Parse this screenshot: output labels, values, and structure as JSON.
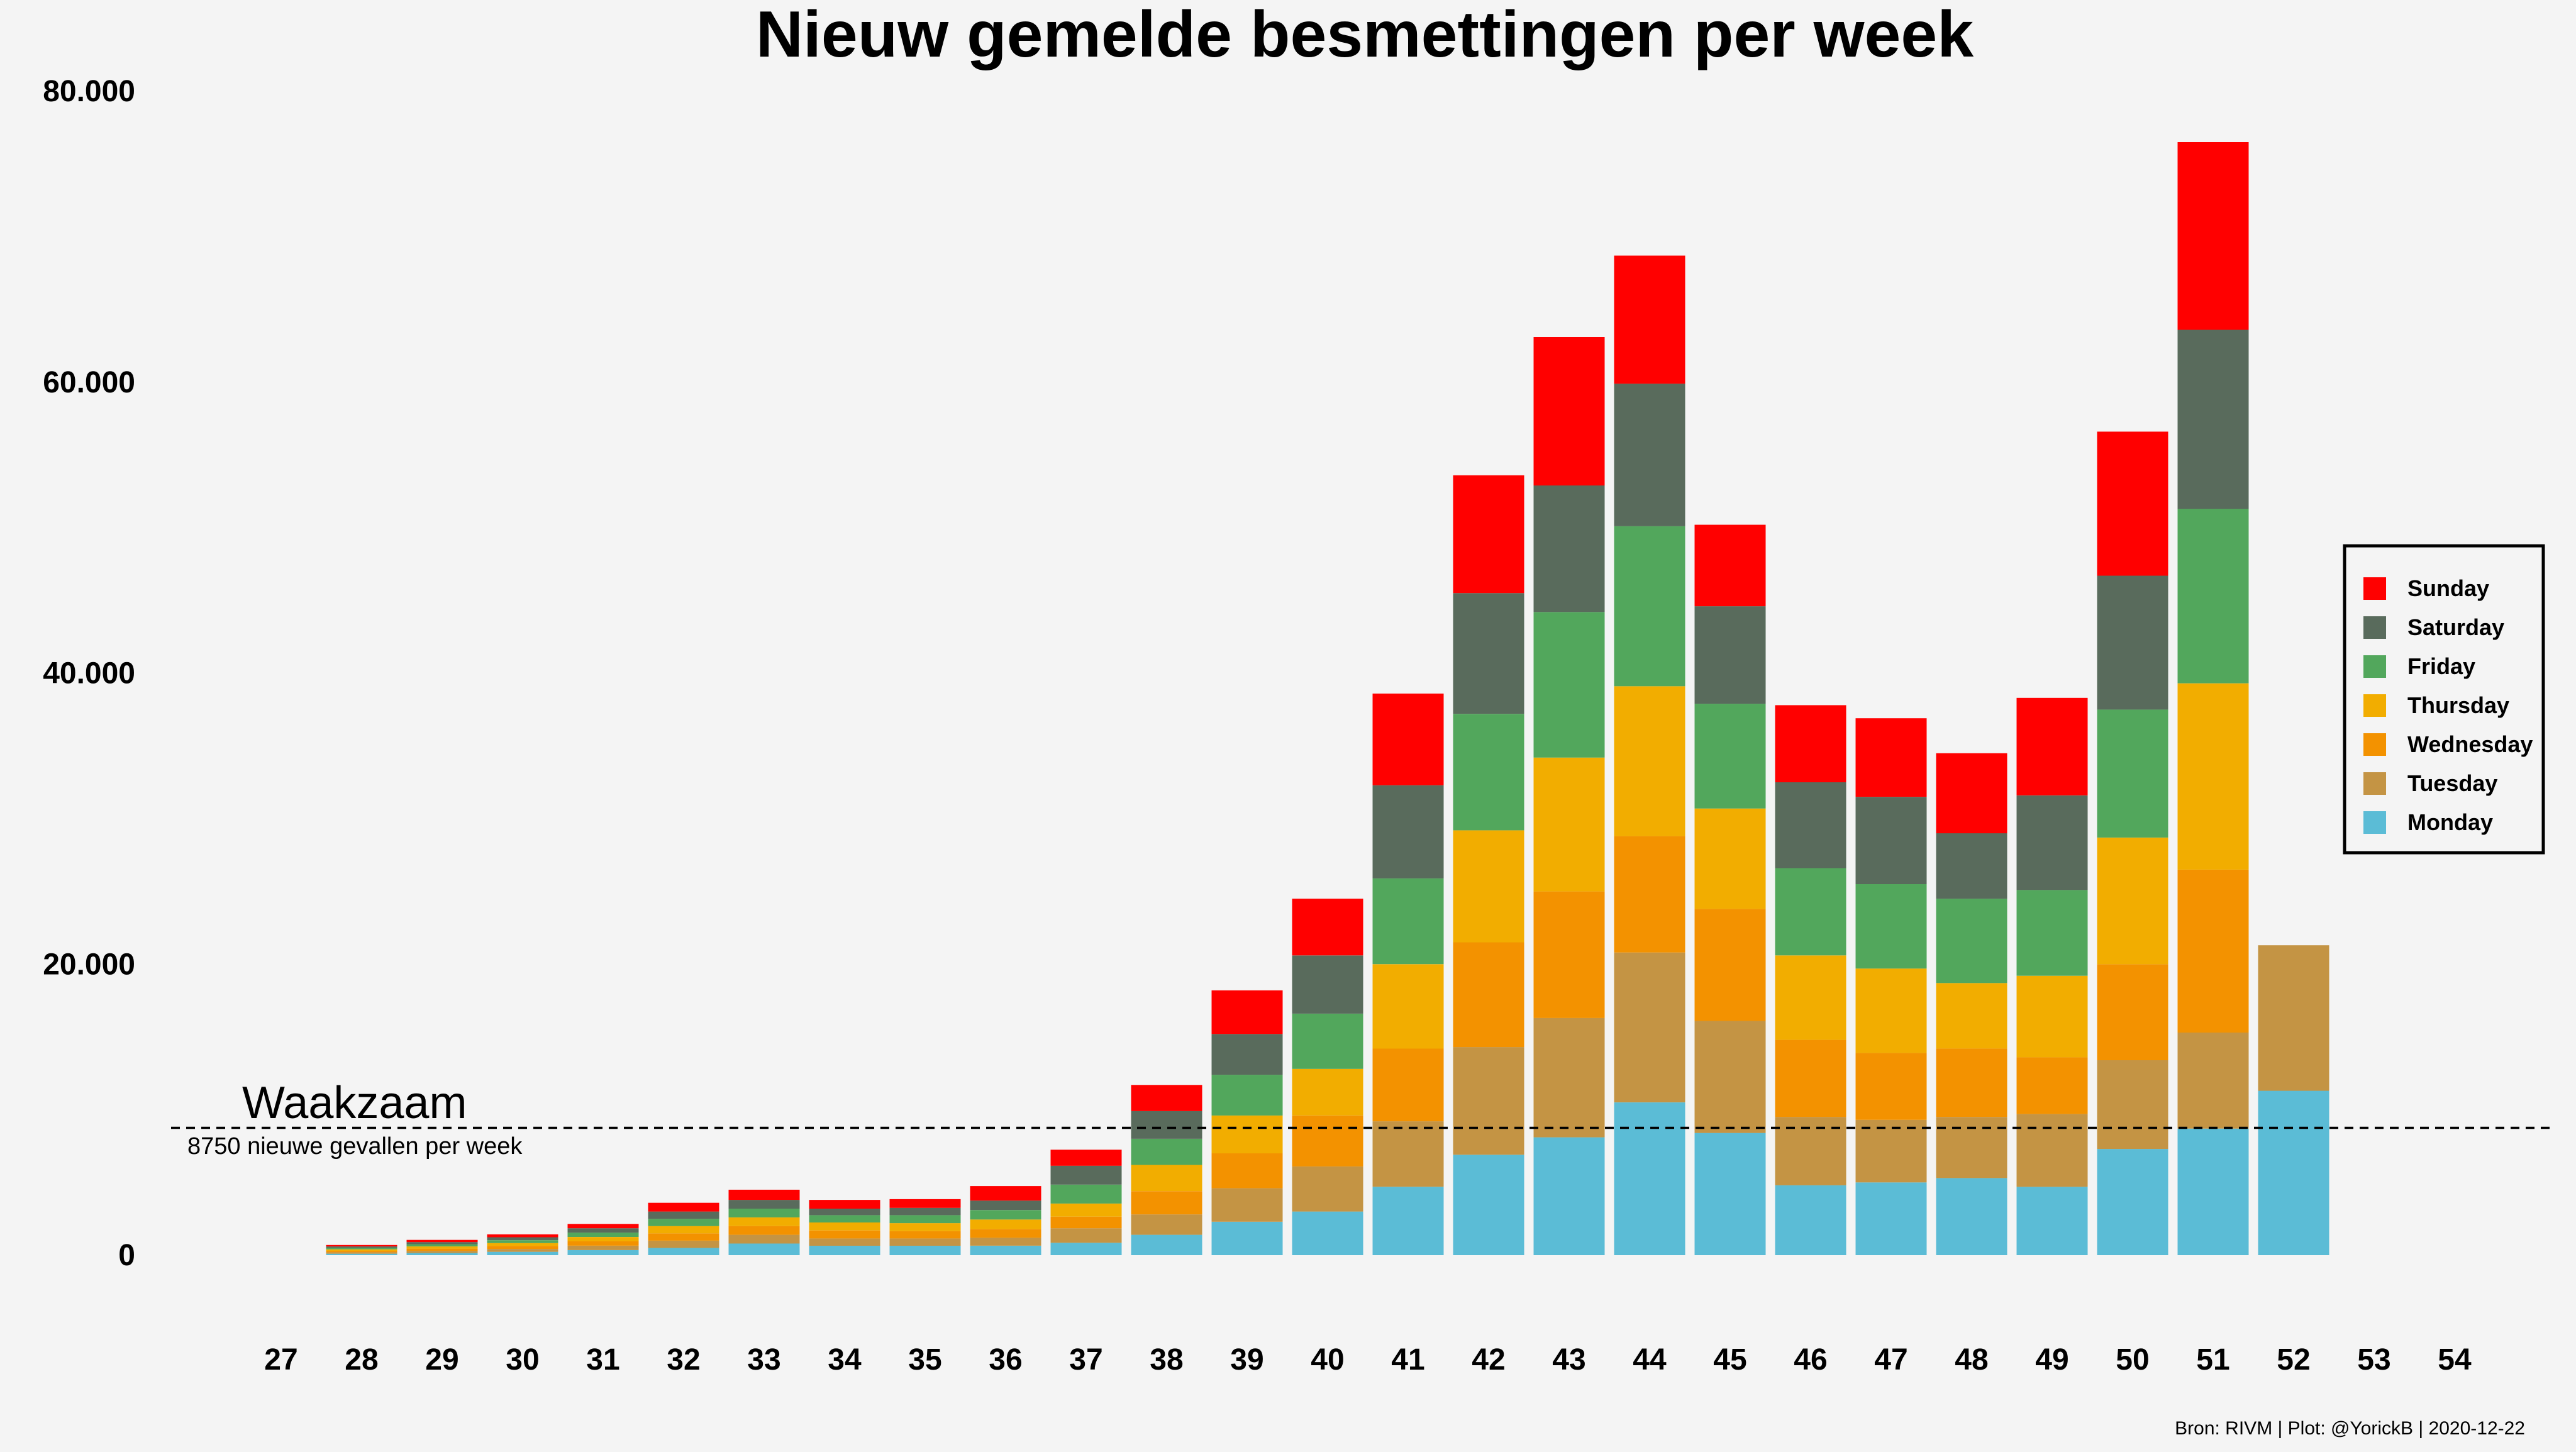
{
  "chart_data": {
    "type": "bar",
    "stacked": true,
    "title": "Nieuw gemelde besmettingen per week",
    "xlabel": "",
    "ylabel": "",
    "ylim": [
      0,
      80000
    ],
    "y_ticks": [
      0,
      20000,
      40000,
      60000,
      80000
    ],
    "y_tick_labels": [
      "0",
      "20.000",
      "40.000",
      "60.000",
      "80.000"
    ],
    "grid": false,
    "legend_position": "right",
    "categories": [
      "27",
      "28",
      "29",
      "30",
      "31",
      "32",
      "33",
      "34",
      "35",
      "36",
      "37",
      "38",
      "39",
      "40",
      "41",
      "42",
      "43",
      "44",
      "45",
      "46",
      "47",
      "48",
      "49",
      "50",
      "51",
      "52",
      "53",
      "54"
    ],
    "series": [
      {
        "name": "Monday",
        "color": "#5bbcd6",
        "values": [
          0,
          100,
          150,
          230,
          350,
          500,
          800,
          650,
          650,
          650,
          850,
          1400,
          2300,
          3000,
          4700,
          6900,
          8100,
          10500,
          8400,
          4800,
          5000,
          5300,
          4700,
          7300,
          8700,
          11300,
          0,
          0
        ]
      },
      {
        "name": "Tuesday",
        "color": "#c49444",
        "values": [
          0,
          100,
          150,
          200,
          300,
          500,
          600,
          500,
          500,
          550,
          1000,
          1400,
          2300,
          3100,
          4500,
          7400,
          8200,
          10300,
          7700,
          4700,
          4300,
          4200,
          5000,
          6100,
          6600,
          10000,
          0,
          0
        ]
      },
      {
        "name": "Wednesday",
        "color": "#f39200",
        "values": [
          0,
          100,
          150,
          200,
          300,
          500,
          600,
          550,
          500,
          600,
          800,
          1600,
          2400,
          3500,
          5000,
          7200,
          8700,
          8000,
          7700,
          5300,
          4600,
          4700,
          3900,
          6600,
          11200,
          0,
          0,
          0
        ]
      },
      {
        "name": "Thursday",
        "color": "#f2ad00",
        "values": [
          0,
          100,
          150,
          200,
          300,
          500,
          600,
          550,
          550,
          650,
          900,
          1800,
          2600,
          3200,
          5800,
          7700,
          9200,
          10300,
          6900,
          5800,
          5800,
          4500,
          5600,
          8700,
          12800,
          0,
          0,
          0
        ]
      },
      {
        "name": "Friday",
        "color": "#52a75c",
        "values": [
          0,
          100,
          150,
          200,
          300,
          500,
          600,
          500,
          550,
          650,
          1300,
          1800,
          2800,
          3800,
          5900,
          8000,
          10000,
          11000,
          7200,
          6000,
          5800,
          5800,
          5900,
          8800,
          12000,
          0,
          0,
          0
        ]
      },
      {
        "name": "Saturday",
        "color": "#596b5c",
        "values": [
          0,
          100,
          150,
          200,
          300,
          500,
          600,
          450,
          500,
          650,
          1300,
          1900,
          2800,
          4000,
          6400,
          8300,
          8700,
          9800,
          6700,
          5900,
          6000,
          4500,
          6500,
          9200,
          12300,
          0,
          0,
          0
        ]
      },
      {
        "name": "Sunday",
        "color": "#ff0000",
        "values": [
          0,
          100,
          150,
          200,
          300,
          600,
          700,
          600,
          600,
          1000,
          1100,
          1800,
          3000,
          3900,
          6300,
          8100,
          10200,
          8800,
          5600,
          5300,
          5400,
          5500,
          6700,
          9900,
          12900,
          0,
          0,
          0
        ]
      }
    ],
    "legend": [
      "Sunday",
      "Saturday",
      "Friday",
      "Thursday",
      "Wednesday",
      "Tuesday",
      "Monday"
    ],
    "reference_line": {
      "value": 8750,
      "label": "Waakzaam",
      "sublabel": "8750 nieuwe gevallen per week",
      "style": "dashed"
    },
    "caption": "Bron: RIVM | Plot: @YorickB |  2020-12-22"
  },
  "colors": {
    "background": "#f4f4f4",
    "text": "#000000"
  }
}
